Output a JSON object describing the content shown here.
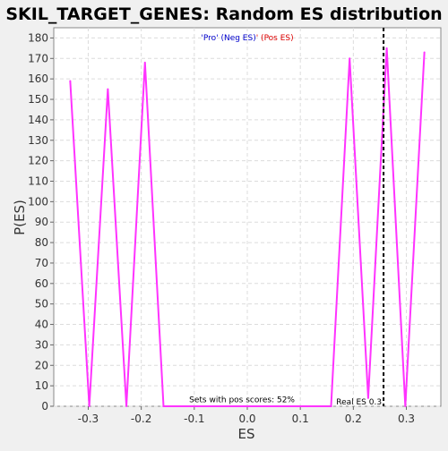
{
  "chart_data": {
    "type": "line",
    "title": "SKIL_TARGET_GENES: Random ES distribution",
    "xlabel": "ES",
    "ylabel": "P(ES)",
    "xlim": [
      -0.365,
      0.365
    ],
    "ylim": [
      0,
      185
    ],
    "xticks": [
      -0.3,
      -0.2,
      -0.1,
      0.0,
      0.1,
      0.2,
      0.3
    ],
    "xtick_labels": [
      "-0.3",
      "-0.2",
      "-0.1",
      "0.0",
      "0.1",
      "0.2",
      "0.3"
    ],
    "yticks": [
      0,
      10,
      20,
      30,
      40,
      50,
      60,
      70,
      80,
      90,
      100,
      110,
      120,
      130,
      140,
      150,
      160,
      170,
      180
    ],
    "ytick_labels": [
      "0",
      "10",
      "20",
      "30",
      "40",
      "50",
      "60",
      "70",
      "80",
      "90",
      "100",
      "110",
      "120",
      "130",
      "140",
      "150",
      "160",
      "170",
      "180"
    ],
    "grid": true,
    "series": [
      {
        "color": "#ff33ff",
        "x": [
          -0.334,
          -0.298,
          -0.263,
          -0.228,
          -0.193,
          -0.158,
          0.158,
          0.193,
          0.228,
          0.263,
          0.298,
          0.334
        ],
        "y": [
          159,
          0,
          155,
          0,
          168,
          0,
          0,
          170,
          4,
          175,
          0,
          173
        ]
      }
    ],
    "real_es": {
      "x": 0.257,
      "label": "Real ES 0.3",
      "color": "#000000"
    },
    "legend": {
      "placement": "top-center",
      "items": [
        {
          "text": "'Pro' (Neg ES)",
          "color": "#0000cc"
        },
        {
          "text": "' (Pos ES)",
          "color": "#dd0000"
        }
      ]
    },
    "annotations": [
      {
        "text": "Sets with pos scores: 52%",
        "x": -0.01,
        "y": 1.5
      }
    ],
    "colors": {
      "background": "#f0f0f0",
      "plot_background": "#ffffff",
      "grid": "#dcdcdc",
      "line": "#ff33ff"
    }
  }
}
